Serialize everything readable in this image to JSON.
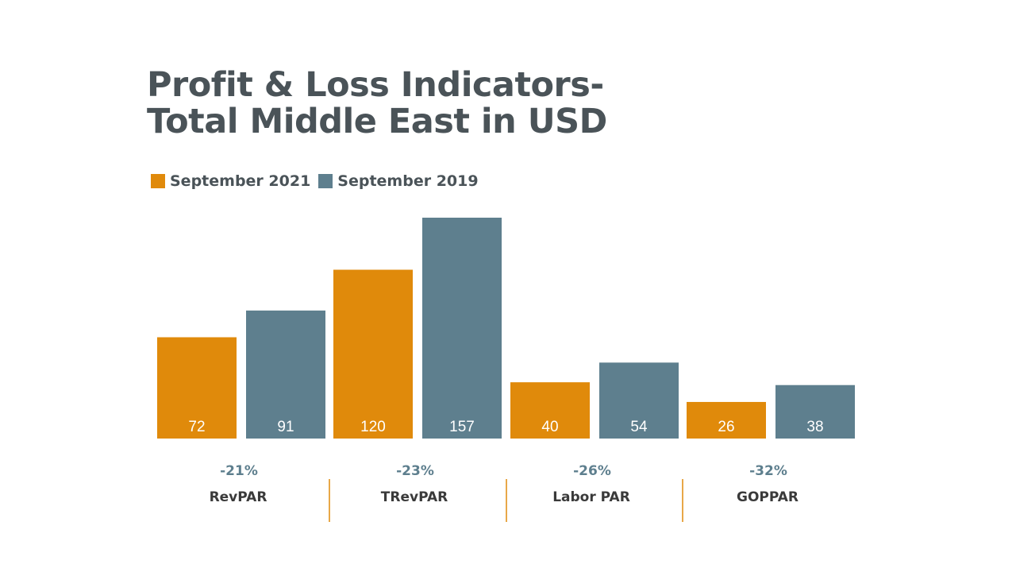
{
  "chart_data": {
    "type": "bar",
    "title_lines": [
      "Profit & Loss Indicators-",
      "Total Middle East in USD"
    ],
    "categories": [
      "RevPAR",
      "TRevPAR",
      "Labor PAR",
      "GOPPAR"
    ],
    "change_labels": [
      "-21%",
      "-23%",
      "-26%",
      "-32%"
    ],
    "series": [
      {
        "name": "September 2021",
        "color": "#e08a0b",
        "values": [
          72,
          120,
          40,
          26
        ]
      },
      {
        "name": "September 2019",
        "color": "#5e7f8e",
        "values": [
          91,
          157,
          54,
          38
        ]
      }
    ],
    "ylim": [
      0,
      157
    ],
    "grid": false,
    "legend_position": "top-left",
    "separator_color": "#e08a0b"
  }
}
